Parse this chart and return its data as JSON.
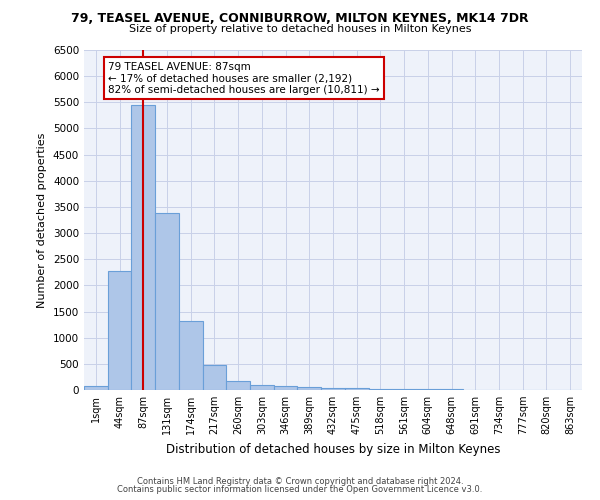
{
  "title_line1": "79, TEASEL AVENUE, CONNIBURROW, MILTON KEYNES, MK14 7DR",
  "title_line2": "Size of property relative to detached houses in Milton Keynes",
  "xlabel": "Distribution of detached houses by size in Milton Keynes",
  "ylabel": "Number of detached properties",
  "footer_line1": "Contains HM Land Registry data © Crown copyright and database right 2024.",
  "footer_line2": "Contains public sector information licensed under the Open Government Licence v3.0.",
  "annotation_line1": "79 TEASEL AVENUE: 87sqm",
  "annotation_line2": "← 17% of detached houses are smaller (2,192)",
  "annotation_line3": "82% of semi-detached houses are larger (10,811) →",
  "bar_labels": [
    "1sqm",
    "44sqm",
    "87sqm",
    "131sqm",
    "174sqm",
    "217sqm",
    "260sqm",
    "303sqm",
    "346sqm",
    "389sqm",
    "432sqm",
    "475sqm",
    "518sqm",
    "561sqm",
    "604sqm",
    "648sqm",
    "691sqm",
    "734sqm",
    "777sqm",
    "820sqm",
    "863sqm"
  ],
  "bar_values": [
    75,
    2280,
    5450,
    3380,
    1310,
    480,
    165,
    100,
    85,
    55,
    40,
    30,
    25,
    20,
    15,
    10,
    5,
    5,
    5,
    5,
    5
  ],
  "bar_color": "#aec6e8",
  "bar_edge_color": "#6a9fd8",
  "vline_x_index": 2,
  "vline_color": "#cc0000",
  "annotation_box_edge_color": "#cc0000",
  "background_color": "#eef2fa",
  "grid_color": "#c8d0e8",
  "ylim": [
    0,
    6500
  ],
  "yticks": [
    0,
    500,
    1000,
    1500,
    2000,
    2500,
    3000,
    3500,
    4000,
    4500,
    5000,
    5500,
    6000,
    6500
  ]
}
